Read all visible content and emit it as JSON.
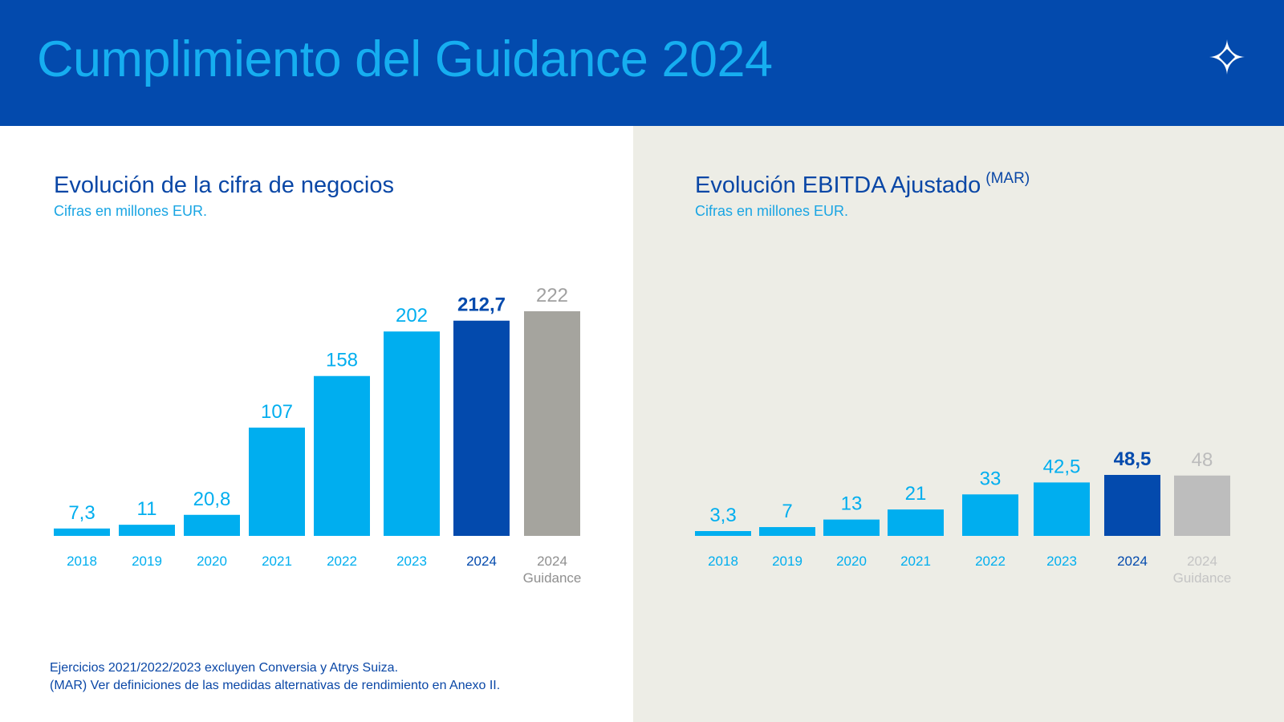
{
  "header": {
    "title": "Cumplimiento del Guidance 2024",
    "logo_icon": "star-diamond-logo-icon"
  },
  "colors": {
    "header_bg": "#034aad",
    "title_color": "#16aef0",
    "bar_light": "#00aeef",
    "bar_dark": "#034aad",
    "bar_guidance_left": "#a5a49e",
    "bar_guidance_right": "#bdbdbd",
    "right_panel_bg": "#edede6"
  },
  "footnotes": [
    "Ejercicios 2021/2022/2023 excluyen Conversia y Atrys Suiza.",
    "(MAR) Ver definiciones de las medidas alternativas de rendimiento en Anexo II."
  ],
  "chart_data": [
    {
      "type": "bar",
      "title": "Evolución de la cifra de negocios",
      "subtitle": "Cifras en millones EUR.",
      "categories": [
        "2018",
        "2019",
        "2020",
        "2021",
        "2022",
        "2023",
        "2024",
        "2024 Guidance"
      ],
      "values": [
        7.3,
        11,
        20.8,
        107,
        158,
        202,
        212.7,
        222
      ],
      "data_labels": [
        "7,3",
        "11",
        "20,8",
        "107",
        "158",
        "202",
        "212,7",
        "222"
      ],
      "highlight": [
        false,
        false,
        false,
        false,
        false,
        false,
        true,
        false
      ],
      "guidance": [
        false,
        false,
        false,
        false,
        false,
        false,
        false,
        true
      ],
      "ylim": [
        0,
        222
      ],
      "grid": false,
      "legend": "none"
    },
    {
      "type": "bar",
      "title": "Evolución EBITDA Ajustado",
      "title_superscript": "(MAR)",
      "subtitle": "Cifras en millones EUR.",
      "categories": [
        "2018",
        "2019",
        "2020",
        "2021",
        "2022",
        "2023",
        "2024",
        "2024 Guidance"
      ],
      "values": [
        3.3,
        7,
        13,
        21,
        33,
        42.5,
        48.5,
        48
      ],
      "data_labels": [
        "3,3",
        "7",
        "13",
        "21",
        "33",
        "42,5",
        "48,5",
        "48"
      ],
      "highlight": [
        false,
        false,
        false,
        false,
        false,
        false,
        true,
        false
      ],
      "guidance": [
        false,
        false,
        false,
        false,
        false,
        false,
        false,
        true
      ],
      "ylim": [
        0,
        222
      ],
      "grid": false,
      "legend": "none"
    }
  ]
}
